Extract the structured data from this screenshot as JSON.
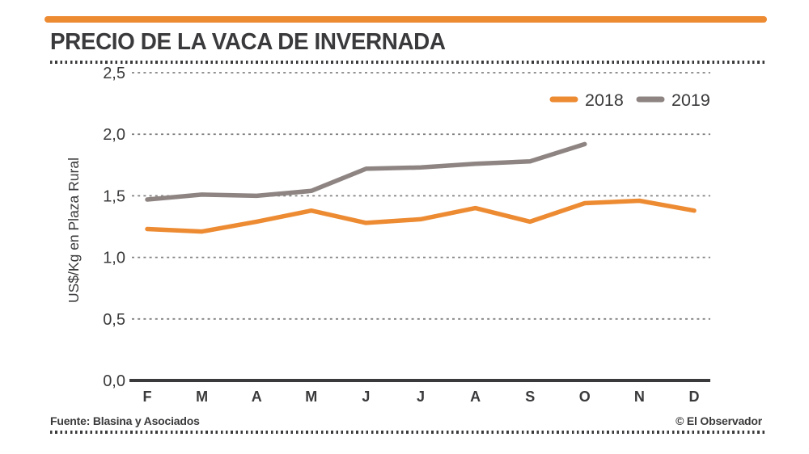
{
  "header": {
    "title": "PRECIO DE LA VACA DE INVERNADA"
  },
  "footer": {
    "source": "Fuente: Blasina y Asociados",
    "credit": "© El Observador"
  },
  "colors": {
    "accent_orange": "#ED8B33",
    "series_2018": "#ED8B33",
    "series_2019": "#8E8583",
    "text_dark": "#3A3A3C",
    "gridline": "#828282",
    "axis_line": "#3A3A3C"
  },
  "chart_data": {
    "type": "line",
    "title": "PRECIO DE LA VACA DE INVERNADA",
    "xlabel": "",
    "ylabel": "US$/Kg en Plaza Rural",
    "categories": [
      "F",
      "M",
      "A",
      "M",
      "J",
      "J",
      "A",
      "S",
      "O",
      "N",
      "D"
    ],
    "y_ticks": [
      "2,5",
      "2,0",
      "1,5",
      "1,0",
      "0,5",
      "0,0"
    ],
    "ylim": [
      0,
      2.5
    ],
    "grid": "horizontal-dotted",
    "legend_position": "top-right",
    "series": [
      {
        "name": "2018",
        "color": "#ED8B33",
        "values": [
          1.23,
          1.21,
          1.29,
          1.38,
          1.28,
          1.31,
          1.4,
          1.29,
          1.44,
          1.46,
          1.38
        ]
      },
      {
        "name": "2019",
        "color": "#8E8583",
        "values": [
          1.47,
          1.51,
          1.5,
          1.54,
          1.72,
          1.73,
          1.76,
          1.78,
          1.92
        ]
      }
    ]
  }
}
